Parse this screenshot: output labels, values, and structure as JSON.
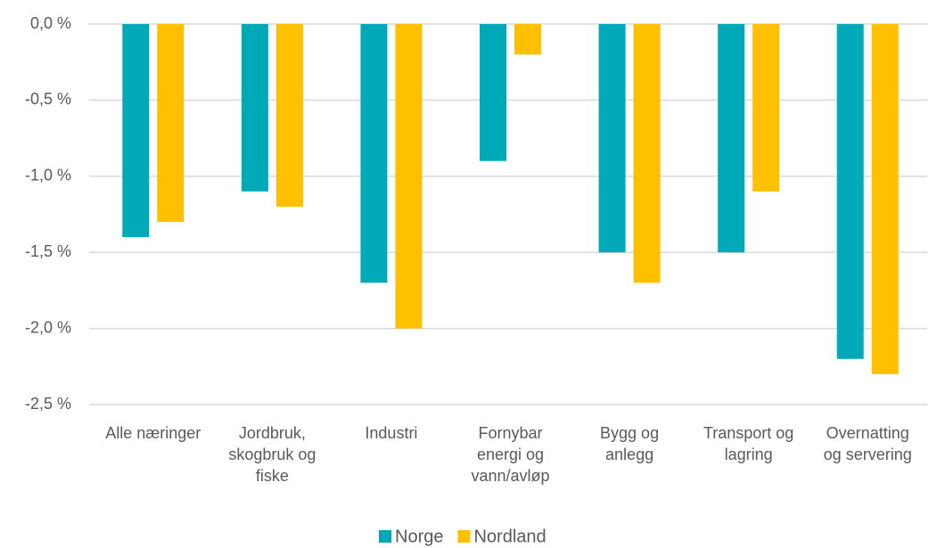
{
  "chart_data": {
    "type": "bar",
    "categories": [
      [
        "Alle næringer"
      ],
      [
        "Jordbruk,",
        "skogbruk og",
        "fiske"
      ],
      [
        "Industri"
      ],
      [
        "Fornybar",
        "energi og",
        "vann/avløp"
      ],
      [
        "Bygg og",
        "anlegg"
      ],
      [
        "Transport og",
        "lagring"
      ],
      [
        "Overnatting",
        "og servering"
      ]
    ],
    "series": [
      {
        "name": "Norge",
        "color": "#00a9b8",
        "values": [
          -1.4,
          -1.1,
          -1.7,
          -0.9,
          -1.5,
          -1.5,
          -2.2
        ]
      },
      {
        "name": "Nordland",
        "color": "#ffc000",
        "values": [
          -1.3,
          -1.2,
          -2.0,
          -0.2,
          -1.7,
          -1.1,
          -2.3
        ]
      }
    ],
    "ylim": [
      -2.5,
      0
    ],
    "yticks": [
      {
        "value": 0,
        "label": "0,0 %"
      },
      {
        "value": -0.5,
        "label": "-0,5 %"
      },
      {
        "value": -1,
        "label": "-1,0 %"
      },
      {
        "value": -1.5,
        "label": "-1,5 %"
      },
      {
        "value": -2,
        "label": "-2,0 %"
      },
      {
        "value": -2.5,
        "label": "-2,5 %"
      }
    ],
    "grid": true,
    "legend": "bottom"
  }
}
